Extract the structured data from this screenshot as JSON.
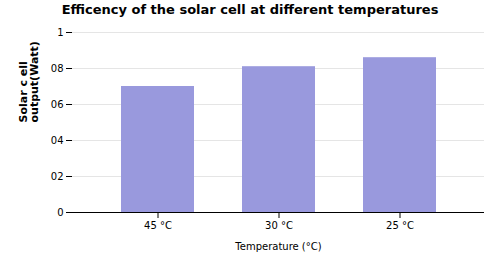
{
  "chart_data": {
    "type": "bar",
    "title": "Efficency of the solar cell at different temperatures",
    "categories": [
      "45 °C",
      "30 °C",
      "25 °C"
    ],
    "values": [
      0.7,
      0.81,
      0.86
    ],
    "color": "#9999dd",
    "xlabel": "Temperature (°C)",
    "ylabel": "Solar c ell\noutput(Watt)",
    "ylim": [
      0,
      1.0
    ],
    "yticks": [
      0,
      {
        "value": 0.2,
        "label": "02"
      },
      {
        "value": 0.4,
        "label": "04"
      },
      {
        "value": 0.6,
        "label": "06"
      },
      {
        "value": 0.8,
        "label": "08"
      },
      1
    ],
    "grid": true
  }
}
